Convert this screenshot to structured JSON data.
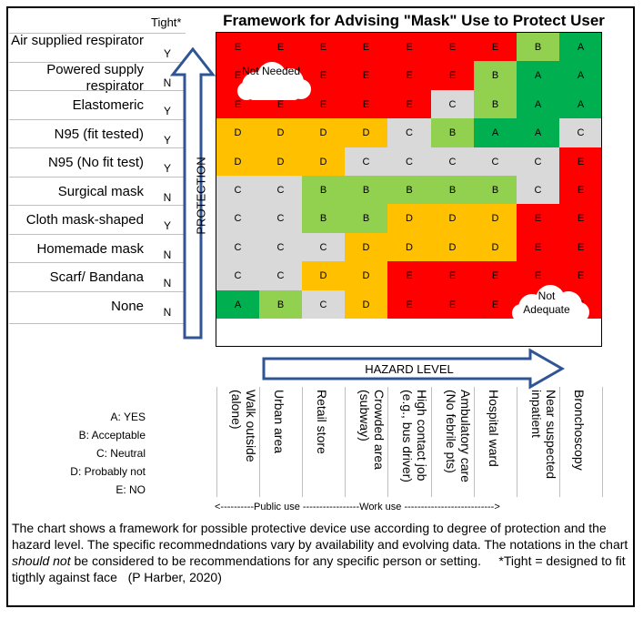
{
  "title": "Framework for Advising \"Mask\" Use to Protect User",
  "tight_header": "Tight*",
  "rows": [
    {
      "label": "Air supplied respirator",
      "tight": "Y"
    },
    {
      "label": "Powered supply respirator",
      "tight": "N"
    },
    {
      "label": "Elastomeric",
      "tight": "Y"
    },
    {
      "label": "N95 (fit tested)",
      "tight": "Y"
    },
    {
      "label": "N95 (No fit test)",
      "tight": "Y"
    },
    {
      "label": "Surgical mask",
      "tight": "N"
    },
    {
      "label": "Cloth mask-shaped",
      "tight": "Y"
    },
    {
      "label": "Homemade mask",
      "tight": "N"
    },
    {
      "label": "Scarf/ Bandana",
      "tight": "N"
    },
    {
      "label": "None",
      "tight": "N"
    }
  ],
  "columns": [
    "Walk outside (alone)",
    "Urban area",
    "Retail store",
    "Crowded area (subway)",
    "High contact job (e.g., bus driver)",
    "Ambulatory care (No febrile pts)",
    "Hospital ward",
    "Near suspected inpatient",
    "Bronchoscopy"
  ],
  "chart_data": {
    "type": "heatmap",
    "title": "Framework for Advising \"Mask\" Use to Protect User",
    "xlabel": "HAZARD LEVEL",
    "ylabel": "PROTECTION",
    "grid": [
      [
        "E",
        "E",
        "E",
        "E",
        "E",
        "E",
        "E",
        "B",
        "A"
      ],
      [
        "E",
        "E",
        "E",
        "E",
        "E",
        "E",
        "B",
        "A",
        "A"
      ],
      [
        "E",
        "E",
        "E",
        "E",
        "E",
        "C",
        "B",
        "A",
        "A"
      ],
      [
        "D",
        "D",
        "D",
        "D",
        "C",
        "B",
        "A",
        "A",
        "C"
      ],
      [
        "D",
        "D",
        "D",
        "C",
        "C",
        "C",
        "C",
        "C",
        "E"
      ],
      [
        "C",
        "C",
        "B",
        "B",
        "B",
        "B",
        "B",
        "C",
        "E"
      ],
      [
        "C",
        "C",
        "B",
        "B",
        "D",
        "D",
        "D",
        "E",
        "E"
      ],
      [
        "C",
        "C",
        "C",
        "D",
        "D",
        "D",
        "D",
        "E",
        "E"
      ],
      [
        "C",
        "C",
        "D",
        "D",
        "E",
        "E",
        "E",
        "E",
        "E"
      ],
      [
        "A",
        "B",
        "C",
        "D",
        "E",
        "E",
        "E",
        "E",
        "E"
      ]
    ],
    "colors": {
      "A": "#00b050",
      "B": "#92d050",
      "C": "#d9d9d9",
      "D": "#ffc000",
      "E": "#ff0000"
    }
  },
  "legend": [
    "A: YES",
    "B: Acceptable",
    "C: Neutral",
    "D: Probably not",
    "E: NO"
  ],
  "clouds": {
    "top": "Not Needed",
    "bottom": "Not Adequate"
  },
  "use_axis": "<----------Public use -----------------Work use --------------------------->",
  "caption": {
    "part1": "The chart shows a framework for possible protective device use according to degree of protection and the hazard level. The specific recommedndations vary by availability and evolving data. The notations in the chart ",
    "emph": "should not",
    "part2": " be considered to be recommendations for any specific person or setting.",
    "footnote": "*Tight = designed to fit tigthly against face",
    "credit": "(P Harber, 2020)"
  }
}
